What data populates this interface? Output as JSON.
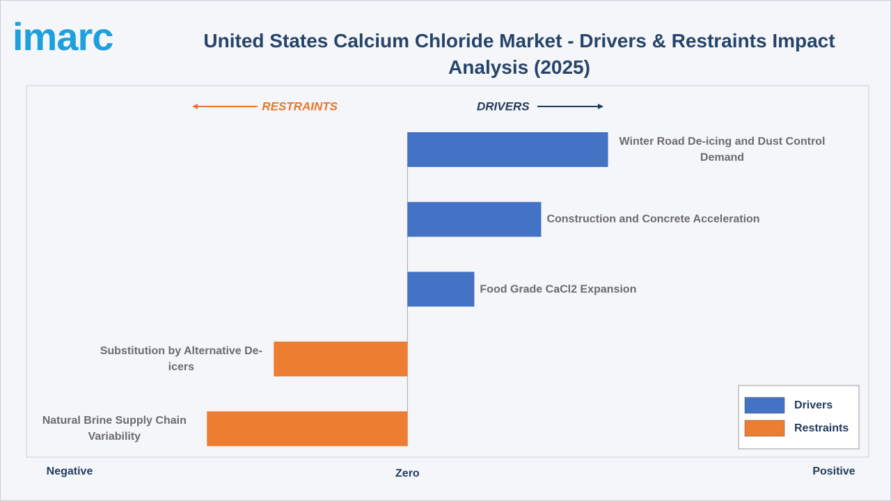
{
  "logo": "imarc",
  "chart_data": {
    "type": "diverging-bar",
    "title": "United States Calcium Chloride Market - Drivers & Restraints Impact Analysis (2025)",
    "direction_labels": {
      "left": "RESTRAINTS",
      "right": "DRIVERS"
    },
    "axis_labels": {
      "negative": "Negative",
      "zero": "Zero",
      "positive": "Positive"
    },
    "categories": [
      "Winter Road De-icing and Dust Control Demand",
      "Construction and Concrete Acceleration",
      "Food Grade CaCl2 Expansion",
      "Substitution by Alternative De-icers",
      "Natural Brine Supply Chain Variability"
    ],
    "series": [
      {
        "name": "Drivers",
        "color": "#4472c4",
        "values": [
          3,
          2,
          1,
          null,
          null
        ]
      },
      {
        "name": "Restraints",
        "color": "#ed7d31",
        "values": [
          null,
          null,
          null,
          -2,
          -3
        ]
      }
    ],
    "xlim": [
      -5.7,
      6.9
    ],
    "legend": "bottom-right"
  }
}
